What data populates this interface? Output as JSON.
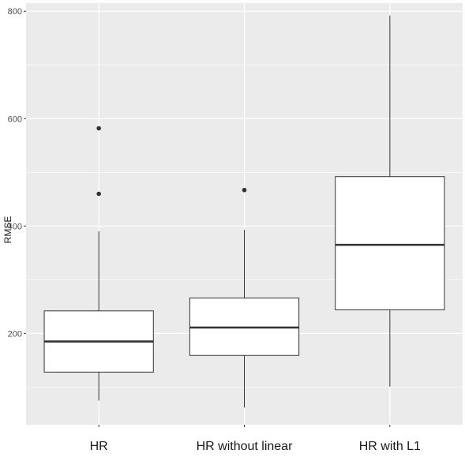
{
  "chart_data": {
    "type": "boxplot",
    "title": "",
    "xlabel": "",
    "ylabel": "RMSE",
    "ylim": [
      30,
      815
    ],
    "yticks": [
      200,
      400,
      600,
      800
    ],
    "grid": true,
    "legend": "none",
    "colors": {
      "panel_background": "#ebebeb",
      "grid_major": "#ffffff",
      "box_fill": "#ffffff",
      "box_stroke": "#333333"
    },
    "categories": [
      "HR",
      "HR without linear",
      "HR with L1"
    ],
    "boxes": [
      {
        "category": "HR",
        "whisker_low": 75,
        "q1": 128,
        "median": 185,
        "q3": 242,
        "whisker_high": 390,
        "outliers": [
          460,
          582
        ]
      },
      {
        "category": "HR without linear",
        "whisker_low": 62,
        "q1": 159,
        "median": 211,
        "q3": 266,
        "whisker_high": 393,
        "outliers": [
          467
        ]
      },
      {
        "category": "HR with L1",
        "whisker_low": 101,
        "q1": 244,
        "median": 365,
        "q3": 492,
        "whisker_high": 792,
        "outliers": []
      }
    ]
  }
}
